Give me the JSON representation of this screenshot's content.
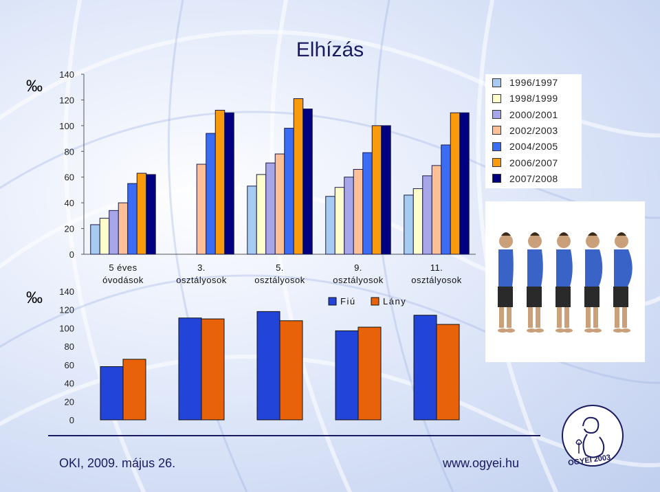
{
  "title": "Elhízás",
  "unit_label": "‰",
  "footer": {
    "left": "OKI, 2009. május 26.",
    "right": "www.ogyei.hu"
  },
  "logo_text": "OGYEI 2003",
  "colors": {
    "s1": "#a6caf0",
    "s2": "#ffffcc",
    "s3": "#a7a6e8",
    "s4": "#fcbf96",
    "s5": "#3a6cf4",
    "s6": "#f99b0c",
    "s7": "#000080",
    "boy": "#2244d8",
    "girl": "#e8620a"
  },
  "chart_data": [
    {
      "type": "bar",
      "categories": [
        "5 éves óvodások",
        "3. osztályosok",
        "5. osztályosok",
        "9. osztályosok",
        "11. osztályosok"
      ],
      "category_lines": [
        [
          "5 éves",
          "óvodások"
        ],
        [
          "3.",
          "osztályosok"
        ],
        [
          "5.",
          "osztályosok"
        ],
        [
          "9.",
          "osztályosok"
        ],
        [
          "11.",
          "osztályosok"
        ]
      ],
      "series": [
        {
          "name": "1996/1997",
          "values": [
            23,
            null,
            53,
            45,
            46
          ]
        },
        {
          "name": "1998/1999",
          "values": [
            28,
            null,
            62,
            52,
            51
          ]
        },
        {
          "name": "2000/2001",
          "values": [
            34,
            null,
            71,
            60,
            61
          ]
        },
        {
          "name": "2002/2003",
          "values": [
            40,
            70,
            78,
            66,
            69
          ]
        },
        {
          "name": "2004/2005",
          "values": [
            55,
            94,
            98,
            79,
            85
          ]
        },
        {
          "name": "2006/2007",
          "values": [
            63,
            112,
            121,
            100,
            110
          ]
        },
        {
          "name": "2007/2008",
          "values": [
            62,
            110,
            113,
            100,
            110
          ]
        }
      ],
      "ylim": [
        0,
        140
      ],
      "yticks": [
        0,
        20,
        40,
        60,
        80,
        100,
        120,
        140
      ],
      "legend": "right",
      "grid": false
    },
    {
      "type": "bar",
      "categories": [
        "5 éves óvodások",
        "3. osztályosok",
        "5. osztályosok",
        "9. osztályosok",
        "11. osztályosok"
      ],
      "series": [
        {
          "name": "Fiú",
          "values": [
            58,
            111,
            118,
            97,
            114
          ]
        },
        {
          "name": "Lány",
          "values": [
            66,
            110,
            108,
            101,
            104
          ]
        }
      ],
      "ylim": [
        0,
        140
      ],
      "yticks": [
        0,
        20,
        40,
        60,
        80,
        100,
        120,
        140
      ],
      "legend": "top-center",
      "grid": false
    }
  ]
}
